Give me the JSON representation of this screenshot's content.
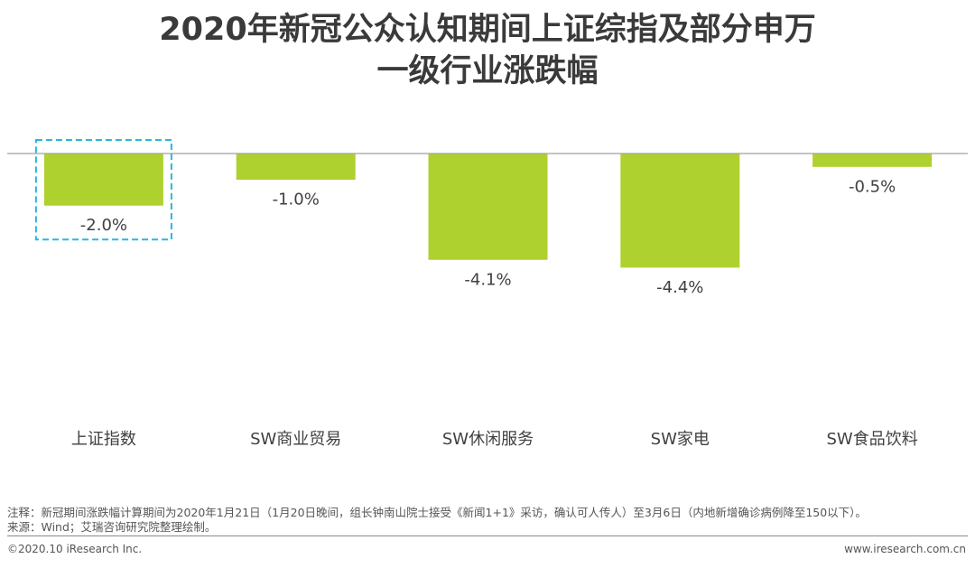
{
  "title_line1": "2020年新冠公众认知期间上证综指及部分申万",
  "title_line2": "一级行业涨跌幅",
  "chart_data": {
    "type": "bar",
    "categories": [
      "上证指数",
      "SW商业贸易",
      "SW休闲服务",
      "SW家电",
      "SW食品饮料"
    ],
    "values": [
      -2.0,
      -1.0,
      -4.1,
      -4.4,
      -0.5
    ],
    "value_labels": [
      "-2.0%",
      "-1.0%",
      "-4.1%",
      "-4.4%",
      "-0.5%"
    ],
    "unit": "%",
    "highlighted_category": "上证指数",
    "ylim": [
      -4.4,
      0
    ],
    "grid": false,
    "bar_color": "#aed130",
    "highlight_color": "#29b6e0",
    "axis_color": "#a0a0a0"
  },
  "note_line": "注释：新冠期间涨跌幅计算期间为2020年1月21日（1月20日晚间，组长钟南山院士接受《新闻1+1》采访，确认可人传人）至3月6日（内地新增确诊病例降至150以下）。",
  "source_line": "来源：Wind；艾瑞咨询研究院整理绘制。",
  "footer_left": "©2020.10 iResearch Inc.",
  "footer_right": "www.iresearch.com.cn"
}
